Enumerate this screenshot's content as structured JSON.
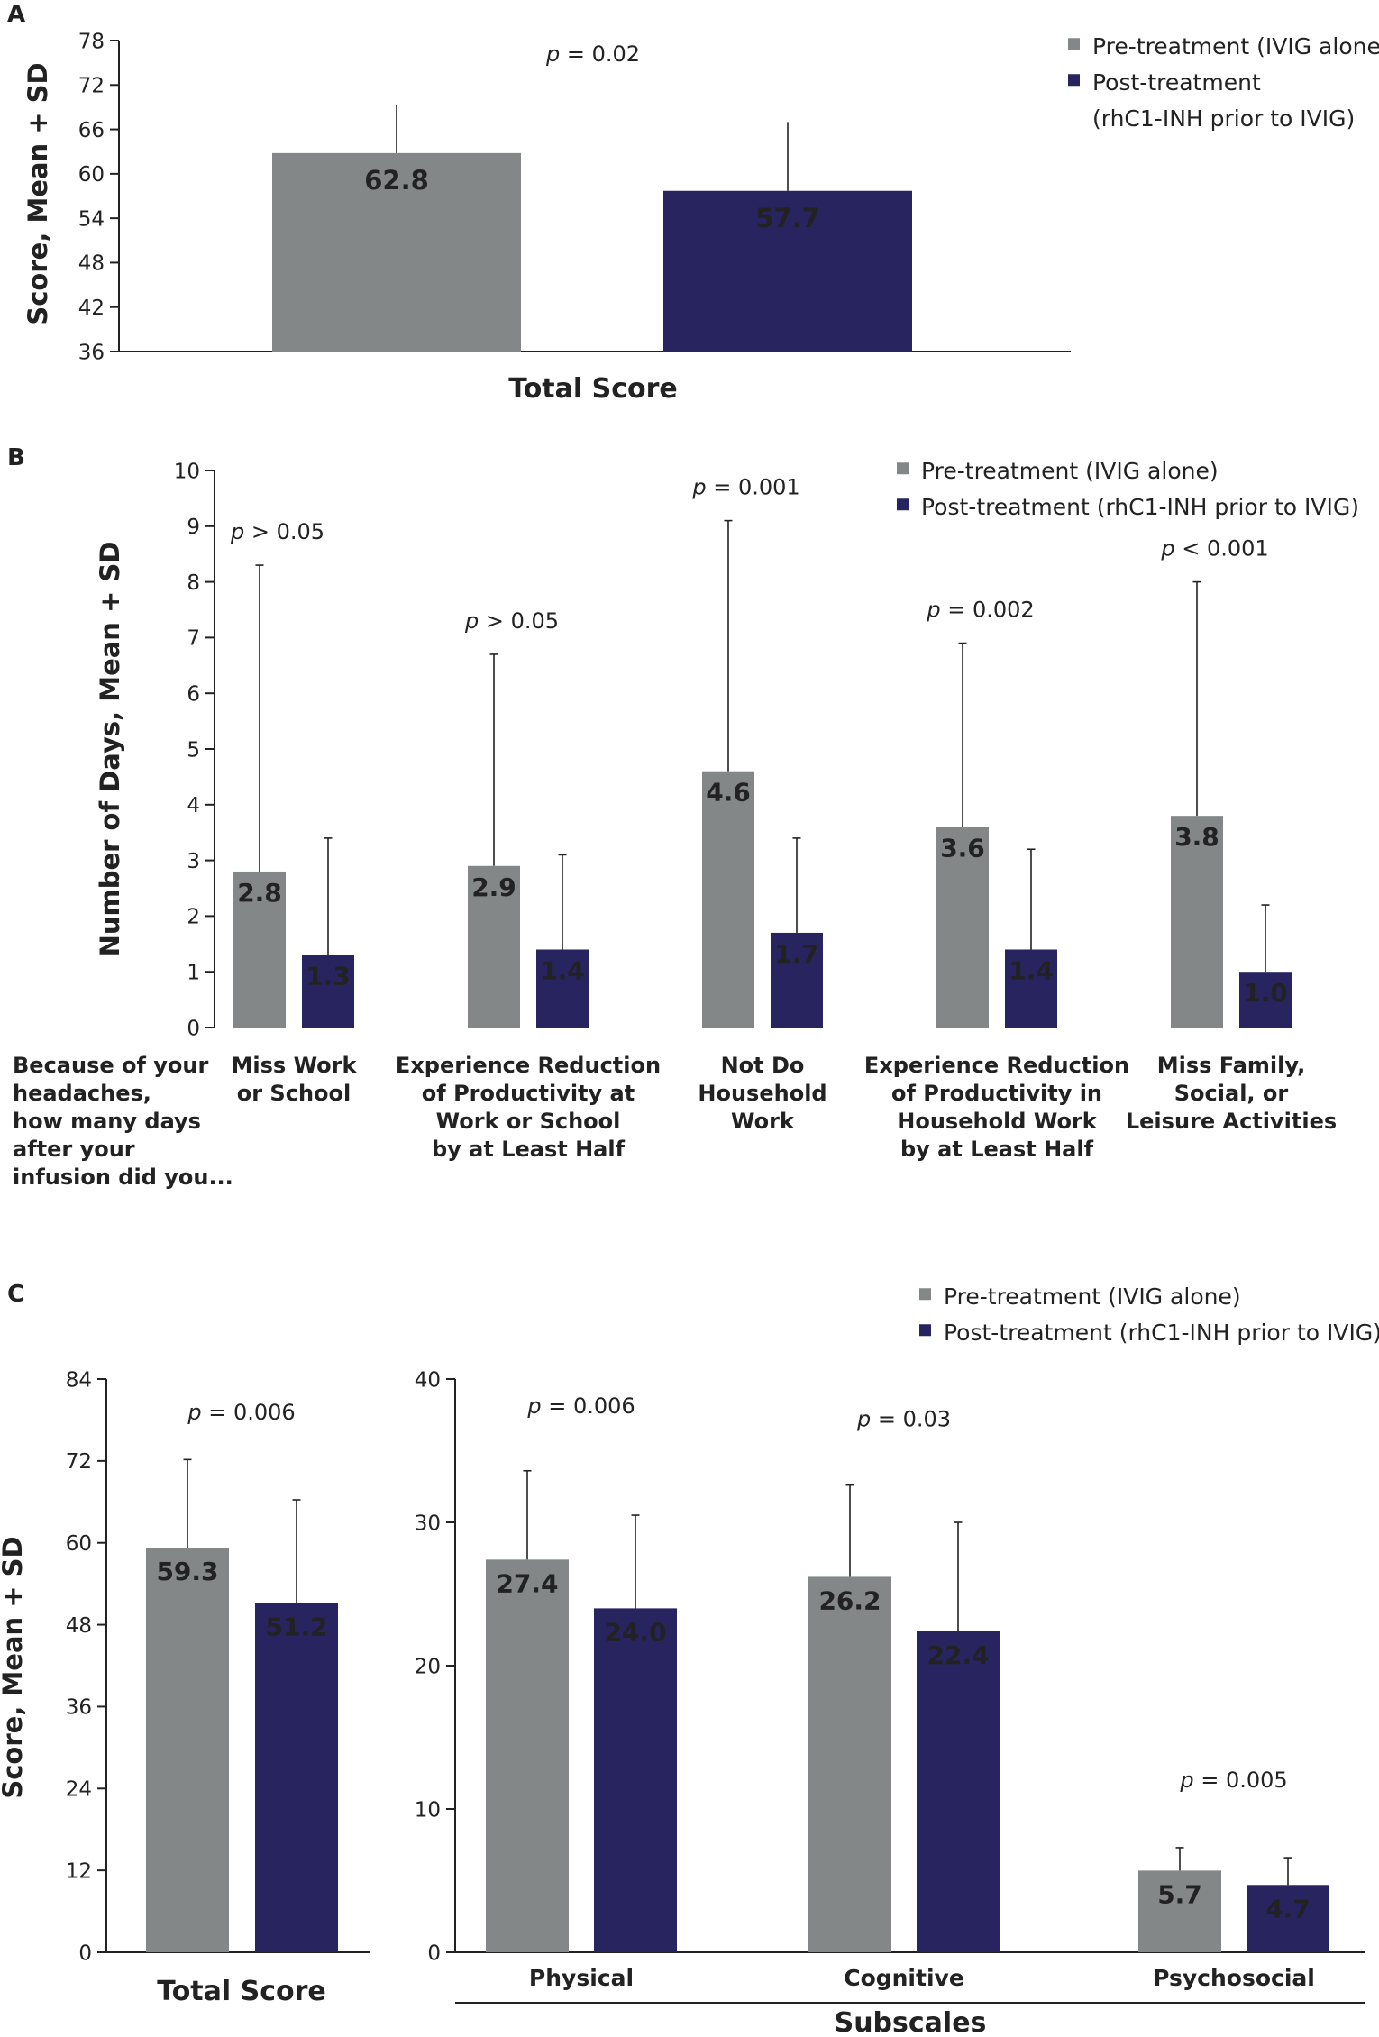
{
  "colors": {
    "pre": "#838787",
    "post": "#272460",
    "text": "#222222"
  },
  "chart_data": [
    {
      "panel": "A",
      "type": "bar",
      "title": "",
      "panel_label": "A",
      "ylabel": "Score, Mean + SD",
      "xlabel": "Total Score",
      "ylim": [
        36,
        78
      ],
      "yticks": [
        36,
        42,
        48,
        54,
        60,
        66,
        72,
        78
      ],
      "legend": {
        "placement": "top-right",
        "entries": [
          "Pre-treatment (IVIG alone)",
          "Post-treatment",
          "(rhC1-INH prior to IVIG)"
        ]
      },
      "categories": [
        "Total Score"
      ],
      "series": [
        {
          "name": "Pre-treatment (IVIG alone)",
          "values": [
            62.8
          ],
          "labels": [
            "62.8"
          ],
          "sd_upper": [
            69.3
          ]
        },
        {
          "name": "Post-treatment (rhC1-INH prior to IVIG)",
          "values": [
            57.7
          ],
          "labels": [
            "57.7"
          ],
          "sd_upper": [
            67.0
          ]
        }
      ],
      "pvalues": [
        {
          "p": "p",
          "text": " = 0.02"
        }
      ]
    },
    {
      "panel": "B",
      "type": "bar",
      "panel_label": "B",
      "ylabel": "Number of Days, Mean + SD",
      "ylim": [
        0,
        10
      ],
      "yticks": [
        0,
        1,
        2,
        3,
        4,
        5,
        6,
        7,
        8,
        9,
        10
      ],
      "legend": {
        "placement": "top-right",
        "entries": [
          "Pre-treatment (IVIG alone)",
          "Post-treatment (rhC1-INH prior to IVIG)"
        ]
      },
      "question_lines": [
        "Because of your",
        "headaches,",
        "how many days",
        "after your",
        "infusion did you..."
      ],
      "categories": [
        [
          "Miss Work",
          "or School"
        ],
        [
          "Experience Reduction",
          "of Productivity at",
          "Work or School",
          "by at Least Half"
        ],
        [
          "Not Do",
          "Household",
          "Work"
        ],
        [
          "Experience Reduction",
          "of Productivity in",
          "Household Work",
          "by at Least Half"
        ],
        [
          "Miss Family,",
          "Social, or",
          "Leisure Activities"
        ]
      ],
      "series": [
        {
          "name": "Pre-treatment (IVIG alone)",
          "values": [
            2.8,
            2.9,
            4.6,
            3.6,
            3.8
          ],
          "labels": [
            "2.8",
            "2.9",
            "4.6",
            "3.6",
            "3.8"
          ],
          "sd_upper": [
            8.3,
            6.7,
            9.1,
            6.9,
            8.0
          ]
        },
        {
          "name": "Post-treatment (rhC1-INH prior to IVIG)",
          "values": [
            1.3,
            1.4,
            1.7,
            1.4,
            1.0
          ],
          "labels": [
            "1.3",
            "1.4",
            "1.7",
            "1.4",
            "1.0"
          ],
          "sd_upper": [
            3.4,
            3.1,
            3.4,
            3.2,
            2.2
          ]
        }
      ],
      "pvalues": [
        {
          "p": "p",
          "text": " > 0.05",
          "at": 8.9
        },
        {
          "p": "p",
          "text": " > 0.05",
          "at": 7.3
        },
        {
          "p": "p",
          "text": " = 0.001",
          "at": 9.7
        },
        {
          "p": "p",
          "text": " = 0.002",
          "at": 7.5
        },
        {
          "p": "p",
          "text": " < 0.001",
          "at": 8.6
        }
      ]
    },
    {
      "panel": "C-total",
      "type": "bar",
      "panel_label": "C",
      "ylabel": "Score, Mean + SD",
      "xlabel": "Total Score",
      "ylim": [
        0,
        84
      ],
      "yticks": [
        0,
        12,
        24,
        36,
        48,
        60,
        72,
        84
      ],
      "categories": [
        "Total Score"
      ],
      "series": [
        {
          "name": "Pre-treatment (IVIG alone)",
          "values": [
            59.3
          ],
          "labels": [
            "59.3"
          ],
          "sd_upper": [
            72.2
          ]
        },
        {
          "name": "Post-treatment (rhC1-INH prior to IVIG)",
          "values": [
            51.2
          ],
          "labels": [
            "51.2"
          ],
          "sd_upper": [
            66.3
          ]
        }
      ],
      "pvalues": [
        {
          "p": "p",
          "text": " = 0.006",
          "at": 82
        }
      ]
    },
    {
      "panel": "C-subscales",
      "type": "bar",
      "xlabel": "Subscales",
      "ylim": [
        0,
        40
      ],
      "yticks": [
        0,
        10,
        20,
        30,
        40
      ],
      "legend": {
        "placement": "top-right",
        "entries": [
          "Pre-treatment (IVIG alone)",
          "Post-treatment (rhC1-INH prior to IVIG)"
        ]
      },
      "categories": [
        "Physical",
        "Cognitive",
        "Psychosocial"
      ],
      "series": [
        {
          "name": "Pre-treatment (IVIG alone)",
          "values": [
            27.4,
            26.2,
            5.7
          ],
          "labels": [
            "27.4",
            "26.2",
            "5.7"
          ],
          "sd_upper": [
            33.6,
            32.6,
            7.3
          ]
        },
        {
          "name": "Post-treatment (rhC1-INH prior to IVIG)",
          "values": [
            24.0,
            22.4,
            4.7
          ],
          "labels": [
            "24.0",
            "22.4",
            "4.7"
          ],
          "sd_upper": [
            30.5,
            30.0,
            6.6
          ]
        }
      ],
      "pvalues": [
        {
          "p": "p",
          "text": " = 0.006",
          "at": 38.1
        },
        {
          "p": "p",
          "text": " = 0.03",
          "at": 37.2
        },
        {
          "p": "p",
          "text": " = 0.005",
          "at": 12.0
        }
      ]
    }
  ]
}
